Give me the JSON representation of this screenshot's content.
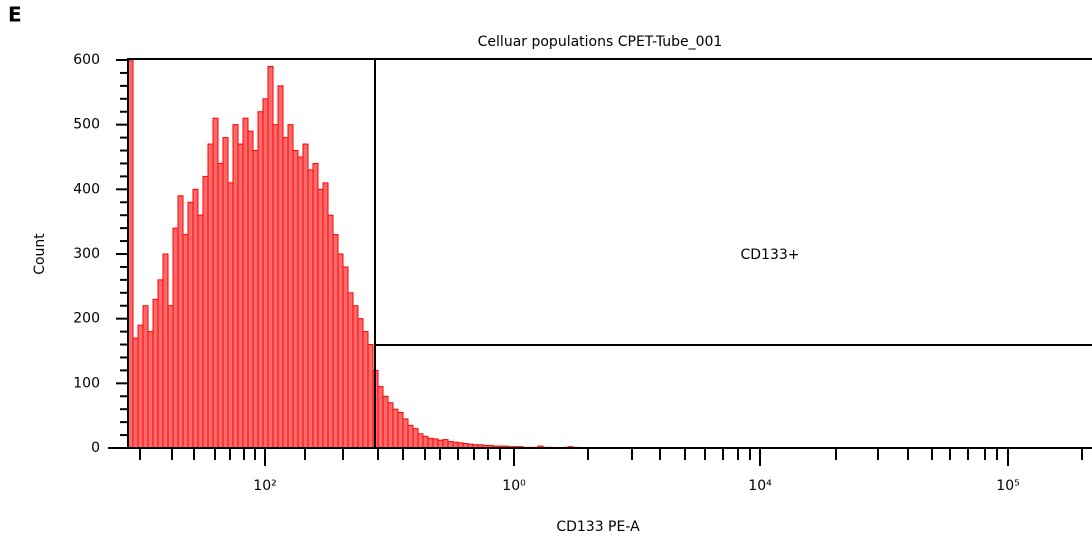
{
  "panel_label": "E",
  "chart_data": {
    "type": "histogram",
    "title": "Celluar populations CPET-Tube_001",
    "x_label": "CD133 PE-A",
    "y_label": "Count",
    "gate_label": "CD133+",
    "x_tick_labels": [
      "10²",
      "10⁰",
      "10⁴",
      "10⁵"
    ],
    "values": [
      600,
      170,
      190,
      220,
      180,
      230,
      260,
      300,
      220,
      340,
      390,
      330,
      380,
      400,
      360,
      420,
      470,
      510,
      440,
      480,
      410,
      500,
      470,
      510,
      490,
      460,
      520,
      540,
      590,
      500,
      560,
      480,
      500,
      460,
      450,
      470,
      430,
      440,
      400,
      410,
      360,
      330,
      300,
      280,
      240,
      220,
      200,
      180,
      160,
      120,
      95,
      80,
      70,
      60,
      55,
      45,
      35,
      30,
      22,
      18,
      15,
      14,
      12,
      13,
      10,
      9,
      8,
      7,
      6,
      5,
      5,
      4,
      4,
      3,
      3,
      3,
      2,
      2,
      2,
      1,
      1,
      1,
      3,
      1,
      1,
      0,
      0,
      1,
      2,
      1
    ],
    "color": "#ff6b6b",
    "edge_color": "#ff0000",
    "ylim": [
      0,
      600
    ],
    "yticks": [
      0,
      100,
      200,
      300,
      400,
      500,
      600
    ]
  }
}
